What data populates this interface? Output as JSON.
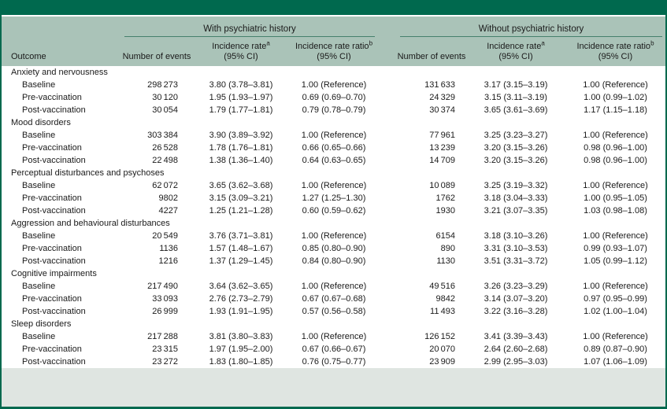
{
  "colors": {
    "frame_green": "#00694e",
    "header_sage": "#aac3b8",
    "footer_band": "#dfe5e1",
    "rule_green": "#46806d"
  },
  "table": {
    "group_with": "With psychiatric history",
    "group_without": "Without psychiatric history",
    "headers": {
      "outcome": "Outcome",
      "events": "Number of events",
      "rate": "Incidence rate",
      "rate_sup": "a",
      "ratio": "Incidence rate ratio",
      "ratio_sup": "b",
      "ci": "(95% CI)"
    },
    "sections": [
      {
        "name": "Anxiety and nervousness",
        "rows": [
          {
            "label": "Baseline",
            "with": [
              "298 273",
              "3.80 (3.78–3.81)",
              "1.00 (Reference)"
            ],
            "without": [
              "131 633",
              "3.17 (3.15–3.19)",
              "1.00 (Reference)"
            ]
          },
          {
            "label": "Pre-vaccination",
            "with": [
              "30 120",
              "1.95 (1.93–1.97)",
              "0.69 (0.69–0.70)"
            ],
            "without": [
              "24 329",
              "3.15 (3.11–3.19)",
              "1.00 (0.99–1.02)"
            ]
          },
          {
            "label": "Post-vaccination",
            "with": [
              "30 054",
              "1.79 (1.77–1.81)",
              "0.79 (0.78–0.79)"
            ],
            "without": [
              "30 374",
              "3.65 (3.61–3.69)",
              "1.17 (1.15–1.18)"
            ]
          }
        ]
      },
      {
        "name": "Mood disorders",
        "rows": [
          {
            "label": "Baseline",
            "with": [
              "303 384",
              "3.90 (3.89–3.92)",
              "1.00 (Reference)"
            ],
            "without": [
              "77 961",
              "3.25 (3.23–3.27)",
              "1.00 (Reference)"
            ]
          },
          {
            "label": "Pre-vaccination",
            "with": [
              "26 528",
              "1.78 (1.76–1.81)",
              "0.66 (0.65–0.66)"
            ],
            "without": [
              "13 239",
              "3.20 (3.15–3.26)",
              "0.98 (0.96–1.00)"
            ]
          },
          {
            "label": "Post-vaccination",
            "with": [
              "22 498",
              "1.38 (1.36–1.40)",
              "0.64 (0.63–0.65)"
            ],
            "without": [
              "14 709",
              "3.20 (3.15–3.26)",
              "0.98 (0.96–1.00)"
            ]
          }
        ]
      },
      {
        "name": "Perceptual disturbances and psychoses",
        "rows": [
          {
            "label": "Baseline",
            "with": [
              "62 072",
              "3.65 (3.62–3.68)",
              "1.00 (Reference)"
            ],
            "without": [
              "10 089",
              "3.25 (3.19–3.32)",
              "1.00 (Reference)"
            ]
          },
          {
            "label": "Pre-vaccination",
            "with": [
              "9802",
              "3.15 (3.09–3.21)",
              "1.27 (1.25–1.30)"
            ],
            "without": [
              "1762",
              "3.18 (3.04–3.33)",
              "1.00 (0.95–1.05)"
            ]
          },
          {
            "label": "Post-vaccination",
            "with": [
              "4227",
              "1.25 (1.21–1.28)",
              "0.60 (0.59–0.62)"
            ],
            "without": [
              "1930",
              "3.21 (3.07–3.35)",
              "1.03 (0.98–1.08)"
            ]
          }
        ]
      },
      {
        "name": "Aggression and behavioural disturbances",
        "rows": [
          {
            "label": "Baseline",
            "with": [
              "20 549",
              "3.76 (3.71–3.81)",
              "1.00 (Reference)"
            ],
            "without": [
              "6154",
              "3.18 (3.10–3.26)",
              "1.00 (Reference)"
            ]
          },
          {
            "label": "Pre-vaccination",
            "with": [
              "1136",
              "1.57 (1.48–1.67)",
              "0.85 (0.80–0.90)"
            ],
            "without": [
              "890",
              "3.31 (3.10–3.53)",
              "0.99 (0.93–1.07)"
            ]
          },
          {
            "label": "Post-vaccination",
            "with": [
              "1216",
              "1.37 (1.29–1.45)",
              "0.84 (0.80–0.90)"
            ],
            "without": [
              "1130",
              "3.51 (3.31–3.72)",
              "1.05 (0.99–1.12)"
            ]
          }
        ]
      },
      {
        "name": "Cognitive impairments",
        "rows": [
          {
            "label": "Baseline",
            "with": [
              "217 490",
              "3.64 (3.62–3.65)",
              "1.00 (Reference)"
            ],
            "without": [
              "49 516",
              "3.26 (3.23–3.29)",
              "1.00 (Reference)"
            ]
          },
          {
            "label": "Pre-vaccination",
            "with": [
              "33 093",
              "2.76 (2.73–2.79)",
              "0.67 (0.67–0.68)"
            ],
            "without": [
              "9842",
              "3.14 (3.07–3.20)",
              "0.97 (0.95–0.99)"
            ]
          },
          {
            "label": "Post-vaccination",
            "with": [
              "26 999",
              "1.93 (1.91–1.95)",
              "0.57 (0.56–0.58)"
            ],
            "without": [
              "11 493",
              "3.22 (3.16–3.28)",
              "1.02 (1.00–1.04)"
            ]
          }
        ]
      },
      {
        "name": "Sleep disorders",
        "rows": [
          {
            "label": "Baseline",
            "with": [
              "217 288",
              "3.81 (3.80–3.83)",
              "1.00 (Reference)"
            ],
            "without": [
              "126 152",
              "3.41 (3.39–3.43)",
              "1.00 (Reference)"
            ]
          },
          {
            "label": "Pre-vaccination",
            "with": [
              "23 315",
              "1.97 (1.95–2.00)",
              "0.67 (0.66–0.67)"
            ],
            "without": [
              "20 070",
              "2.64 (2.60–2.68)",
              "0.89 (0.87–0.90)"
            ]
          },
          {
            "label": "Post-vaccination",
            "with": [
              "23 272",
              "1.83 (1.80–1.85)",
              "0.76 (0.75–0.77)"
            ],
            "without": [
              "23 909",
              "2.99 (2.95–3.03)",
              "1.07 (1.06–1.09)"
            ]
          }
        ]
      }
    ]
  }
}
